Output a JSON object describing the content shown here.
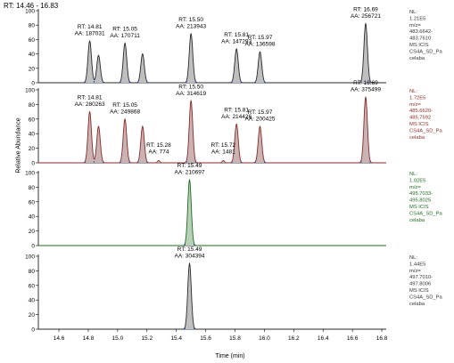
{
  "rt_range": "RT: 14.46 - 16.83",
  "y_axis_label": "Relative Abundance",
  "chart_data": {
    "type": "line",
    "xlabel": "Time (min)",
    "xlim": [
      14.46,
      16.83
    ],
    "x_ticks": [
      "14.6",
      "14.8",
      "15.0",
      "15.2",
      "15.4",
      "15.6",
      "15.8",
      "16.0",
      "16.2",
      "16.4",
      "16.6",
      "16.8"
    ],
    "y_ticks": [
      "0",
      "20",
      "40",
      "60",
      "80",
      "100"
    ],
    "ylim": [
      0,
      100
    ],
    "panels": [
      {
        "color": "#2a2a2a",
        "fill": "#bfbfbf",
        "info": [
          "NL:",
          "1.21E5",
          "m/z=",
          "483.6642-",
          "483.7610",
          "MS ICIS",
          "CS4A_SD_Pa",
          "celaba"
        ],
        "peaks": [
          {
            "rt": 14.81,
            "height": 58,
            "labels": [
              "RT: 14.81",
              "AA: 187031"
            ]
          },
          {
            "rt": 14.87,
            "height": 38,
            "labels": []
          },
          {
            "rt": 15.05,
            "height": 55,
            "labels": [
              "RT: 15.05",
              "AA: 170711"
            ]
          },
          {
            "rt": 15.17,
            "height": 40,
            "labels": []
          },
          {
            "rt": 15.5,
            "height": 68,
            "labels": [
              "RT: 15.50",
              "AA: 213943"
            ]
          },
          {
            "rt": 15.81,
            "height": 47,
            "labels": [
              "RT: 15.81",
              "AA: 147293"
            ]
          },
          {
            "rt": 15.97,
            "height": 43,
            "labels": [
              "RT: 15.97",
              "AA: 136598"
            ]
          },
          {
            "rt": 16.69,
            "height": 82,
            "labels": [
              "RT: 16.69",
              "AA: 256721"
            ]
          }
        ]
      },
      {
        "color": "#8b2a2a",
        "fill": "#c9b3b3",
        "info": [
          "NL:",
          "1.72E5",
          "m/z=",
          "485.6620-",
          "485.7592",
          "MS ICIS",
          "CS4A_SD_Pa",
          "celaba"
        ],
        "peaks": [
          {
            "rt": 14.81,
            "height": 70,
            "labels": [
              "RT: 14.81",
              "AA: 280263"
            ]
          },
          {
            "rt": 14.87,
            "height": 50,
            "labels": []
          },
          {
            "rt": 15.05,
            "height": 60,
            "labels": [
              "RT: 15.05",
              "AA: 249868"
            ]
          },
          {
            "rt": 15.17,
            "height": 50,
            "labels": []
          },
          {
            "rt": 15.28,
            "height": 3,
            "labels": [
              "RT: 15.28",
              "AA: 774"
            ]
          },
          {
            "rt": 15.5,
            "height": 85,
            "labels": [
              "RT: 15.50",
              "AA: 314619"
            ]
          },
          {
            "rt": 15.72,
            "height": 3,
            "labels": [
              "RT: 15.72",
              "AA: 1481"
            ]
          },
          {
            "rt": 15.81,
            "height": 53,
            "labels": [
              "RT: 15.81",
              "AA: 214426"
            ]
          },
          {
            "rt": 15.97,
            "height": 50,
            "labels": [
              "RT: 15.97",
              "AA: 200425"
            ]
          },
          {
            "rt": 16.69,
            "height": 90,
            "labels": [
              "RT: 16.69",
              "AA: 375499"
            ]
          }
        ]
      },
      {
        "color": "#1e6b1e",
        "fill": "#b8d0b8",
        "info": [
          "NL:",
          "1.02E5",
          "m/z=",
          "495.7033-",
          "495.8025",
          "MS ICIS",
          "CS4A_SD_Pa",
          "celaba"
        ],
        "peaks": [
          {
            "rt": 15.49,
            "height": 90,
            "labels": [
              "RT: 15.49",
              "AA: 210697"
            ]
          }
        ]
      },
      {
        "color": "#2a2a2a",
        "fill": "#bfbfbf",
        "info": [
          "NL:",
          "1.44E5",
          "m/z=",
          "497.7010-",
          "497.8006",
          "MS ICIS",
          "CS4A_SD_Pa",
          "celaba"
        ],
        "peaks": [
          {
            "rt": 15.49,
            "height": 90,
            "labels": [
              "RT: 15.49",
              "AA: 304394"
            ]
          }
        ]
      }
    ]
  }
}
